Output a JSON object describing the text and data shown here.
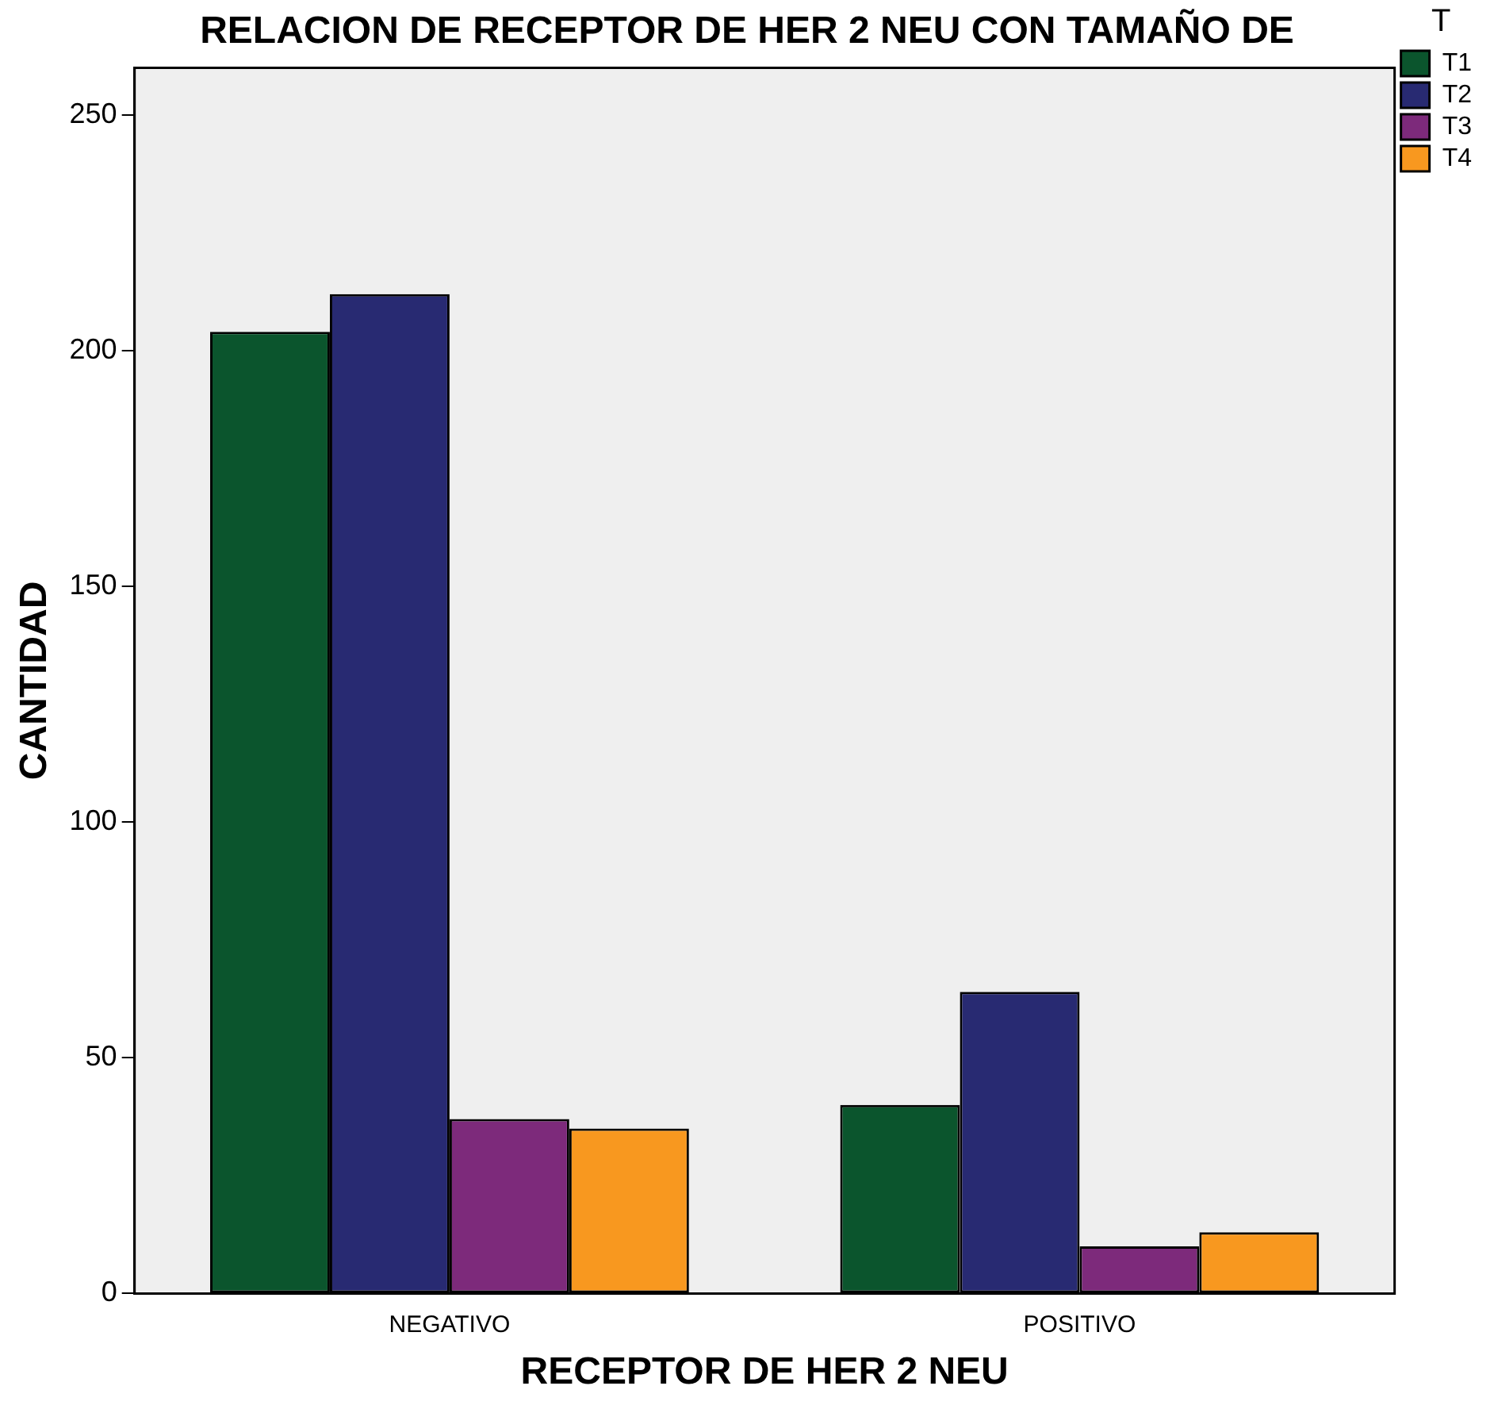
{
  "chart_data": {
    "type": "bar",
    "title": "RELACION DE RECEPTOR DE HER 2 NEU CON TAMAÑO DE",
    "xlabel": "RECEPTOR DE HER 2 NEU",
    "ylabel": "CANTIDAD",
    "legend_title": "T",
    "categories": [
      "NEGATIVO",
      "POSITIVO"
    ],
    "series": [
      {
        "name": "T1",
        "color": "#0b552d",
        "values": [
          204,
          40
        ]
      },
      {
        "name": "T2",
        "color": "#282a72",
        "values": [
          212,
          64
        ]
      },
      {
        "name": "T3",
        "color": "#7d2a7b",
        "values": [
          37,
          10
        ]
      },
      {
        "name": "T4",
        "color": "#f8981f",
        "values": [
          35,
          13
        ]
      }
    ],
    "ylim": [
      0,
      260
    ],
    "yticks": [
      0,
      50,
      100,
      150,
      200,
      250
    ],
    "grid": false,
    "legend": "top right"
  }
}
